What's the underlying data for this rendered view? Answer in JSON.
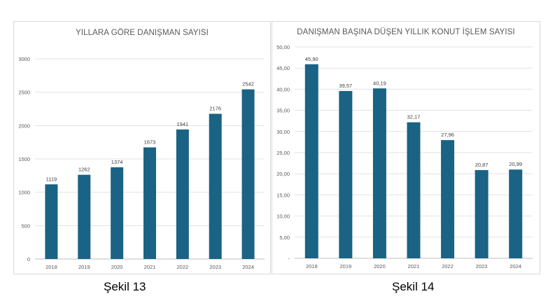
{
  "figures": [
    {
      "caption": "Şekil 13"
    },
    {
      "caption": "Şekil 14"
    }
  ],
  "chart_data": [
    {
      "type": "bar",
      "title": "YILLARA GÖRE DANIŞMAN SAYISI",
      "xlabel": "",
      "ylabel": "",
      "categories": [
        "2018",
        "2019",
        "2020",
        "2021",
        "2022",
        "2023",
        "2024"
      ],
      "values": [
        1119,
        1262,
        1374,
        1673,
        1941,
        2176,
        2542
      ],
      "value_labels": [
        "1119",
        "1262",
        "1374",
        "1673",
        "1941",
        "2176",
        "2542"
      ],
      "ylim": [
        0,
        3000
      ],
      "yticks": [
        0,
        500,
        1000,
        1500,
        2000,
        2500,
        3000
      ],
      "ytick_labels": [
        "0",
        "500",
        "1000",
        "1500",
        "2000",
        "2500",
        "3000"
      ],
      "grid": true,
      "legend": "none",
      "bar_color": "#1a6384"
    },
    {
      "type": "bar",
      "title": "DANIŞMAN BAŞINA DÜŞEN YILLIK KONUT İŞLEM SAYISI",
      "xlabel": "",
      "ylabel": "",
      "categories": [
        "2018",
        "2019",
        "2020",
        "2021",
        "2022",
        "2023",
        "2024"
      ],
      "values": [
        45.9,
        39.57,
        40.19,
        32.17,
        27.96,
        20.87,
        20.99
      ],
      "value_labels": [
        "45,90",
        "39,57",
        "40,19",
        "32,17",
        "27,96",
        "20,87",
        "20,99"
      ],
      "ylim": [
        0,
        50
      ],
      "yticks": [
        0,
        5,
        10,
        15,
        20,
        25,
        30,
        35,
        40,
        45,
        50
      ],
      "ytick_labels": [
        "-",
        "5,00",
        "10,00",
        "15,00",
        "20,00",
        "25,00",
        "30,00",
        "35,00",
        "40,00",
        "45,00",
        "50,00"
      ],
      "grid": true,
      "legend": "none",
      "bar_color": "#1a6384"
    }
  ]
}
